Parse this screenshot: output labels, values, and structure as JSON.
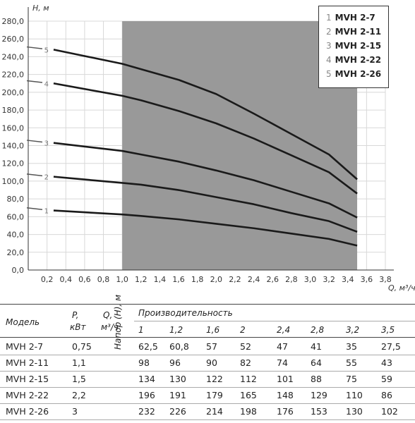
{
  "chart_data": {
    "type": "line",
    "ylabel": "H, м",
    "xlabel": "Q, м³/ч",
    "xlim": [
      0,
      3.8
    ],
    "ylim": [
      0,
      280
    ],
    "x_ticks": [
      "0,2",
      "0,4",
      "0,6",
      "0,8",
      "1,0",
      "1,2",
      "1,4",
      "1,6",
      "1,8",
      "2,0",
      "2,2",
      "2,4",
      "2,6",
      "2,8",
      "3,0",
      "3,2",
      "3,4",
      "3,6",
      "3,8"
    ],
    "y_ticks": [
      "0,0",
      "20,0",
      "40,0",
      "60,0",
      "80,0",
      "100,0",
      "120,0",
      "140,0",
      "160,0",
      "180,0",
      "200,0",
      "220,0",
      "240,0",
      "260,0",
      "280,0"
    ],
    "shaded_range": [
      1.0,
      3.5
    ],
    "grid": true,
    "legend_position": "top-right",
    "series": [
      {
        "name": "MVH 2-7",
        "number": "1",
        "x": [
          0,
          1.0,
          1.2,
          1.6,
          2.0,
          2.4,
          2.8,
          3.2,
          3.5
        ],
        "y": [
          67,
          62.5,
          60.8,
          57,
          52,
          47,
          41,
          35,
          27.5
        ]
      },
      {
        "name": "MVH 2-11",
        "number": "2",
        "x": [
          0,
          1.0,
          1.2,
          1.6,
          2.0,
          2.4,
          2.8,
          3.2,
          3.5
        ],
        "y": [
          105,
          98,
          96,
          90,
          82,
          74,
          64,
          55,
          43
        ]
      },
      {
        "name": "MVH 2-15",
        "number": "3",
        "x": [
          0,
          1.0,
          1.2,
          1.6,
          2.0,
          2.4,
          2.8,
          3.2,
          3.5
        ],
        "y": [
          143,
          134,
          130,
          122,
          112,
          101,
          88,
          75,
          59
        ]
      },
      {
        "name": "MVH 2-22",
        "number": "4",
        "x": [
          0,
          1.0,
          1.2,
          1.6,
          2.0,
          2.4,
          2.8,
          3.2,
          3.5
        ],
        "y": [
          210,
          196,
          191,
          179,
          165,
          148,
          129,
          110,
          86
        ]
      },
      {
        "name": "MVH 2-26",
        "number": "5",
        "x": [
          0,
          1.0,
          1.2,
          1.6,
          2.0,
          2.4,
          2.8,
          3.2,
          3.5
        ],
        "y": [
          248,
          232,
          226,
          214,
          198,
          176,
          153,
          130,
          102
        ]
      }
    ]
  },
  "colors": {
    "shaded": "#999999",
    "curve": "#1a1a1a",
    "grid": "#d8d8d8"
  },
  "table": {
    "headers": {
      "model": "Модель",
      "power_a": "P,",
      "power_b": "кВт",
      "q_a": "Q,",
      "q_b": "м³/ч",
      "capacity": "Производительность",
      "head_label": "Напор (H), м"
    },
    "flows": [
      "1",
      "1,2",
      "1,6",
      "2",
      "2,4",
      "2,8",
      "3,2",
      "3,5"
    ],
    "rows": [
      {
        "model": "MVH 2-7",
        "power": "0,75",
        "values": [
          "62,5",
          "60,8",
          "57",
          "52",
          "47",
          "41",
          "35",
          "27,5"
        ]
      },
      {
        "model": "MVH 2-11",
        "power": "1,1",
        "values": [
          "98",
          "96",
          "90",
          "82",
          "74",
          "64",
          "55",
          "43"
        ]
      },
      {
        "model": "MVH 2-15",
        "power": "1,5",
        "values": [
          "134",
          "130",
          "122",
          "112",
          "101",
          "88",
          "75",
          "59"
        ]
      },
      {
        "model": "MVH 2-22",
        "power": "2,2",
        "values": [
          "196",
          "191",
          "179",
          "165",
          "148",
          "129",
          "110",
          "86"
        ]
      },
      {
        "model": "MVH 2-26",
        "power": "3",
        "values": [
          "232",
          "226",
          "214",
          "198",
          "176",
          "153",
          "130",
          "102"
        ]
      }
    ]
  }
}
